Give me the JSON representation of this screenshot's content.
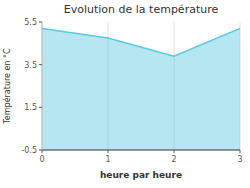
{
  "chart_data": {
    "type": "area",
    "title": "Evolution de la température",
    "xlabel": "heure par heure",
    "ylabel": "Température en °C",
    "x": [
      0,
      1,
      2,
      3
    ],
    "values": [
      5.2,
      4.75,
      3.9,
      5.2
    ],
    "color": "#5bc8e0",
    "xlim": [
      0,
      3
    ],
    "xticks": [
      0,
      1,
      2,
      3
    ],
    "ylim": [
      -0.5,
      5.5
    ],
    "yticks": [
      -0.5,
      1.5,
      3.5,
      5.5
    ],
    "grid": "x"
  }
}
